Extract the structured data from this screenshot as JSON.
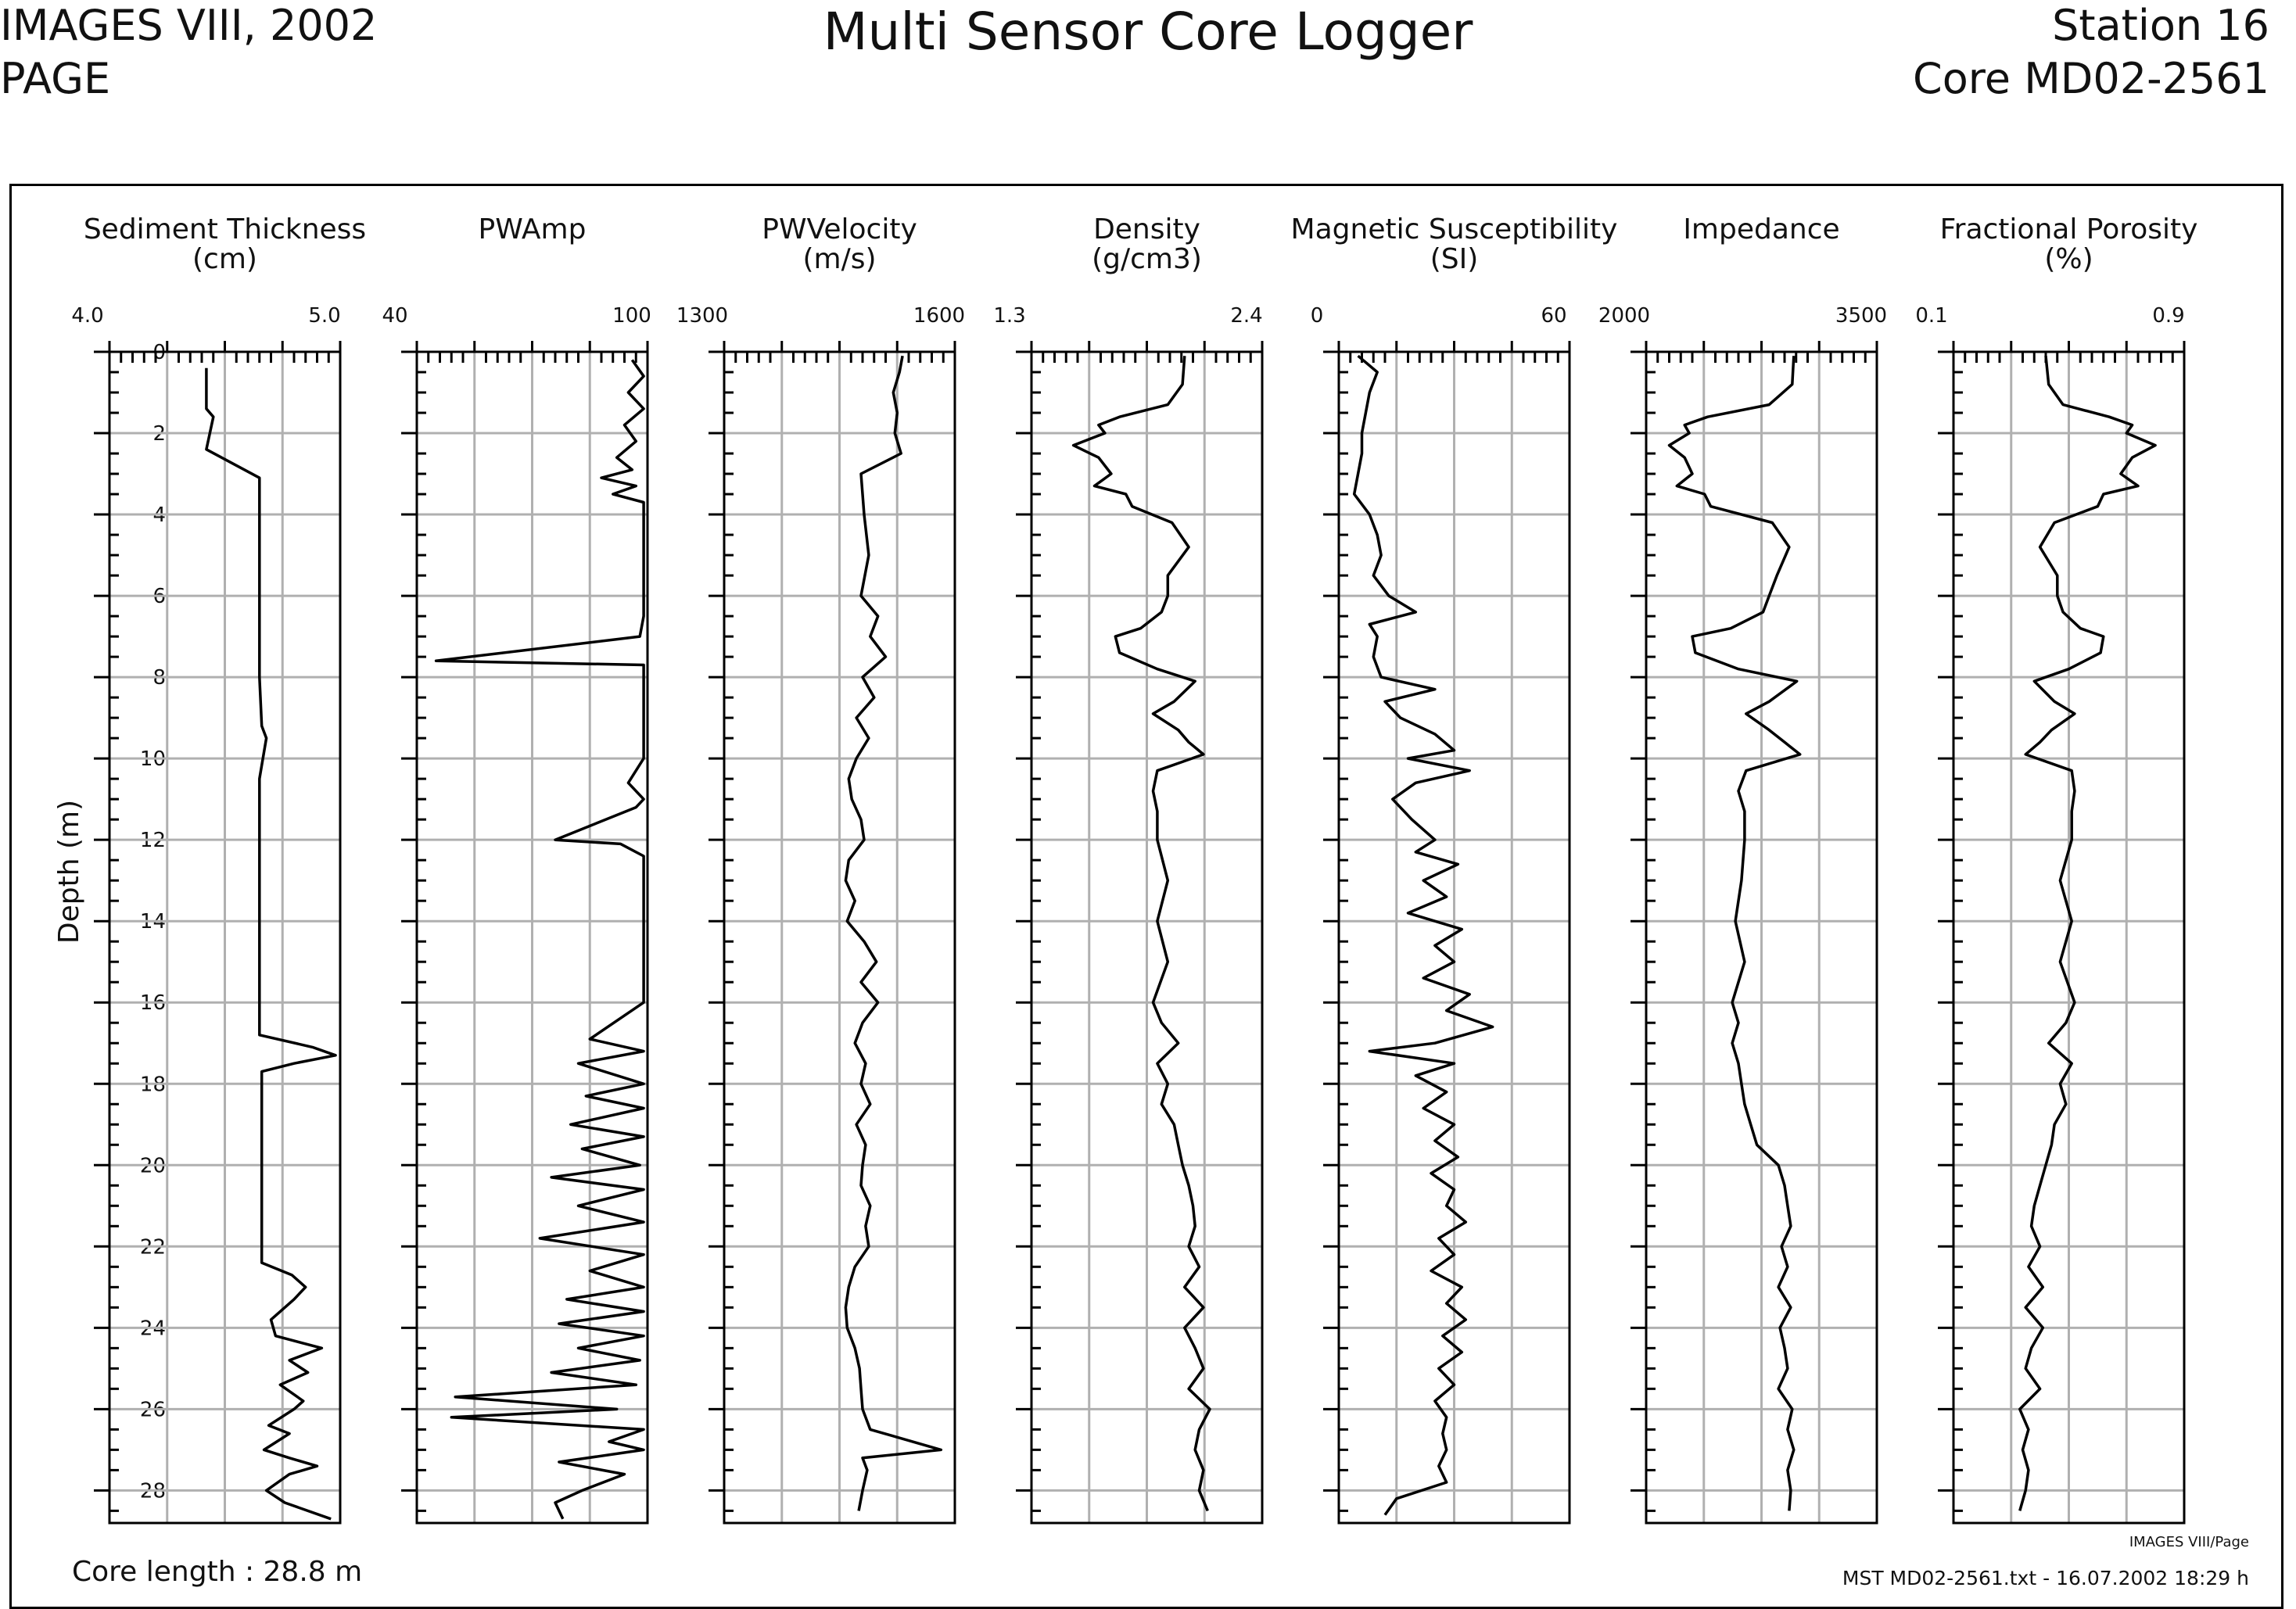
{
  "header": {
    "expedition": "IMAGES VIII, 2002",
    "subtitle": "PAGE",
    "title": "Multi Sensor Core Logger",
    "station": "Station 16",
    "core": "Core MD02-2561"
  },
  "footer": {
    "core_length": "Core length : 28.8 m",
    "tag": "IMAGES VIII/Page",
    "file_info": "MST MD02-2561.txt - 16.07.2002 18:29 h"
  },
  "chart_data": {
    "type": "line",
    "ylabel": "Depth (m)",
    "ylim": [
      0,
      28.8
    ],
    "yticks": [
      0,
      2,
      4,
      6,
      8,
      10,
      12,
      14,
      16,
      18,
      20,
      22,
      24,
      26,
      28
    ],
    "yticklabels": [
      "0",
      "2",
      "4",
      "6",
      "8",
      "10",
      "12",
      "14",
      "16",
      "18",
      "20",
      "22",
      "24",
      "26",
      "28"
    ],
    "grid": true,
    "color": "#000000",
    "panels": [
      {
        "title": "Sediment Thickness",
        "unit": "(cm)",
        "xmin_label": "4.0",
        "xmax_label": "5.0",
        "xlim": [
          4.0,
          5.0
        ],
        "depth": [
          0.4,
          1.4,
          1.6,
          2.4,
          3.1,
          4.2,
          6.0,
          8.0,
          9.2,
          9.5,
          10.5,
          12.5,
          14.0,
          16.0,
          16.8,
          17.1,
          17.3,
          17.5,
          17.7,
          18.2,
          20.0,
          22.4,
          22.7,
          23.0,
          23.3,
          23.8,
          24.2,
          24.5,
          24.8,
          25.1,
          25.4,
          25.8,
          26.0,
          26.4,
          26.6,
          27.0,
          27.2,
          27.4,
          27.6,
          28.0,
          28.3,
          28.7
        ],
        "values": [
          4.42,
          4.42,
          4.45,
          4.42,
          4.65,
          4.65,
          4.65,
          4.65,
          4.66,
          4.68,
          4.65,
          4.65,
          4.65,
          4.65,
          4.65,
          4.88,
          4.98,
          4.8,
          4.66,
          4.66,
          4.66,
          4.66,
          4.79,
          4.85,
          4.8,
          4.7,
          4.72,
          4.92,
          4.78,
          4.86,
          4.74,
          4.84,
          4.8,
          4.69,
          4.78,
          4.67,
          4.78,
          4.9,
          4.78,
          4.68,
          4.76,
          4.96
        ]
      },
      {
        "title": "PWAmp",
        "unit": "",
        "xmin_label": "40",
        "xmax_label": "100",
        "xlim": [
          40,
          100
        ],
        "depth": [
          0.2,
          0.6,
          1.0,
          1.4,
          1.8,
          2.2,
          2.6,
          2.9,
          3.1,
          3.3,
          3.5,
          3.7,
          4.0,
          4.5,
          5.5,
          6.5,
          7.0,
          7.6,
          7.7,
          8.0,
          9.0,
          10.0,
          10.6,
          11.0,
          11.2,
          12.0,
          12.1,
          12.4,
          13.0,
          13.4,
          14.0,
          15.0,
          16.0,
          16.9,
          17.2,
          17.5,
          18.0,
          18.3,
          18.6,
          19.0,
          19.3,
          19.6,
          20.0,
          20.3,
          20.6,
          21.0,
          21.4,
          21.8,
          22.2,
          22.6,
          23.0,
          23.3,
          23.6,
          23.9,
          24.2,
          24.5,
          24.8,
          25.1,
          25.4,
          25.7,
          26.0,
          26.2,
          26.5,
          26.8,
          27.0,
          27.3,
          27.6,
          28.0,
          28.3,
          28.7
        ],
        "values": [
          96,
          99,
          95,
          99,
          94,
          97,
          92,
          96,
          88,
          97,
          91,
          99,
          99,
          99,
          99,
          99,
          98,
          45,
          99,
          99,
          99,
          99,
          95,
          99,
          97,
          76,
          93,
          99,
          99,
          99,
          99,
          99,
          99,
          85,
          99,
          82,
          99,
          84,
          99,
          80,
          99,
          83,
          98,
          75,
          99,
          82,
          99,
          72,
          99,
          85,
          99,
          79,
          99,
          77,
          99,
          82,
          98,
          75,
          97,
          50,
          92,
          49,
          99,
          90,
          99,
          77,
          94,
          83,
          76,
          78
        ]
      },
      {
        "title": "PWVelocity",
        "unit": "(m/s)",
        "xmin_label": "1300",
        "xmax_label": "1600",
        "xlim": [
          1300,
          1600
        ],
        "depth": [
          0.1,
          0.5,
          1.0,
          1.5,
          2.0,
          2.5,
          3.0,
          4.0,
          5.0,
          6.0,
          6.5,
          7.0,
          7.5,
          8.0,
          8.5,
          9.0,
          9.5,
          10.0,
          10.5,
          11.0,
          11.5,
          12.0,
          12.5,
          13.0,
          13.5,
          14.0,
          14.5,
          15.0,
          15.5,
          16.0,
          16.5,
          17.0,
          17.5,
          18.0,
          18.5,
          19.0,
          19.5,
          20.0,
          20.5,
          21.0,
          21.5,
          22.0,
          22.5,
          23.0,
          23.5,
          24.0,
          24.5,
          25.0,
          25.5,
          26.0,
          26.5,
          27.0,
          27.2,
          27.5,
          28.0,
          28.5
        ],
        "values": [
          1532,
          1528,
          1520,
          1525,
          1522,
          1530,
          1478,
          1482,
          1488,
          1478,
          1500,
          1490,
          1510,
          1480,
          1495,
          1472,
          1488,
          1472,
          1462,
          1466,
          1478,
          1482,
          1462,
          1458,
          1470,
          1460,
          1482,
          1498,
          1478,
          1500,
          1480,
          1470,
          1484,
          1478,
          1490,
          1472,
          1484,
          1480,
          1478,
          1490,
          1484,
          1488,
          1470,
          1462,
          1458,
          1460,
          1470,
          1476,
          1478,
          1480,
          1490,
          1582,
          1480,
          1486,
          1480,
          1475
        ]
      },
      {
        "title": "Density",
        "unit": "(g/cm3)",
        "xmin_label": "1.3",
        "xmax_label": "2.4",
        "xlim": [
          1.3,
          2.4
        ],
        "depth": [
          0.1,
          0.8,
          1.3,
          1.6,
          1.8,
          2.0,
          2.3,
          2.6,
          3.0,
          3.3,
          3.5,
          3.8,
          4.2,
          4.8,
          5.5,
          6.0,
          6.4,
          6.8,
          7.0,
          7.4,
          7.8,
          8.1,
          8.6,
          8.9,
          9.3,
          9.6,
          9.9,
          10.3,
          10.8,
          11.3,
          12.0,
          13.0,
          14.0,
          15.0,
          16.0,
          16.5,
          17.0,
          17.5,
          18.0,
          18.5,
          19.0,
          19.5,
          20.0,
          20.5,
          21.0,
          21.5,
          22.0,
          22.5,
          23.0,
          23.5,
          24.0,
          24.5,
          25.0,
          25.5,
          26.0,
          26.5,
          27.0,
          27.5,
          28.0,
          28.5
        ],
        "values": [
          2.03,
          2.02,
          1.95,
          1.72,
          1.62,
          1.65,
          1.5,
          1.62,
          1.68,
          1.6,
          1.75,
          1.78,
          1.97,
          2.05,
          1.95,
          1.95,
          1.92,
          1.82,
          1.7,
          1.72,
          1.9,
          2.08,
          1.98,
          1.88,
          2.0,
          2.05,
          2.12,
          1.9,
          1.88,
          1.9,
          1.9,
          1.95,
          1.9,
          1.95,
          1.88,
          1.92,
          2.0,
          1.9,
          1.95,
          1.92,
          1.98,
          2.0,
          2.02,
          2.05,
          2.07,
          2.08,
          2.05,
          2.1,
          2.03,
          2.12,
          2.03,
          2.08,
          2.12,
          2.05,
          2.15,
          2.1,
          2.08,
          2.12,
          2.1,
          2.14
        ]
      },
      {
        "title": "Magnetic Susceptibility",
        "unit": "(SI)",
        "xmin_label": "0",
        "xmax_label": "60",
        "xlim": [
          0,
          60
        ],
        "depth": [
          0.1,
          0.5,
          1.0,
          1.5,
          2.0,
          2.5,
          3.0,
          3.5,
          4.0,
          4.5,
          5.0,
          5.5,
          6.0,
          6.4,
          6.7,
          7.0,
          7.5,
          8.0,
          8.3,
          8.6,
          9.0,
          9.4,
          9.8,
          10.0,
          10.3,
          10.6,
          11.0,
          11.5,
          12.0,
          12.3,
          12.6,
          13.0,
          13.4,
          13.8,
          14.2,
          14.6,
          15.0,
          15.4,
          15.8,
          16.2,
          16.6,
          17.0,
          17.2,
          17.5,
          17.8,
          18.2,
          18.6,
          19.0,
          19.4,
          19.8,
          20.2,
          20.6,
          21.0,
          21.4,
          21.8,
          22.2,
          22.6,
          23.0,
          23.4,
          23.8,
          24.2,
          24.6,
          25.0,
          25.4,
          25.8,
          26.2,
          26.6,
          27.0,
          27.4,
          27.8,
          28.2,
          28.6
        ],
        "values": [
          5,
          10,
          8,
          7,
          6,
          6,
          5,
          4,
          8,
          10,
          11,
          9,
          13,
          20,
          8,
          10,
          9,
          11,
          25,
          12,
          16,
          25,
          30,
          18,
          34,
          20,
          14,
          19,
          25,
          20,
          31,
          22,
          28,
          18,
          32,
          25,
          30,
          22,
          34,
          28,
          40,
          25,
          8,
          30,
          20,
          28,
          22,
          30,
          25,
          31,
          24,
          30,
          28,
          33,
          26,
          30,
          24,
          32,
          28,
          33,
          27,
          32,
          26,
          30,
          25,
          28,
          27,
          28,
          26,
          28,
          15,
          12
        ]
      },
      {
        "title": "Impedance",
        "unit": "",
        "xmin_label": "2000",
        "xmax_label": "3500",
        "xlim": [
          2000,
          3500
        ],
        "depth": [
          0.1,
          0.8,
          1.3,
          1.6,
          1.8,
          2.0,
          2.3,
          2.6,
          3.0,
          3.3,
          3.5,
          3.8,
          4.2,
          4.8,
          5.5,
          6.0,
          6.4,
          6.8,
          7.0,
          7.4,
          7.8,
          8.1,
          8.6,
          8.9,
          9.3,
          9.6,
          9.9,
          10.3,
          10.8,
          11.3,
          12.0,
          13.0,
          14.0,
          15.0,
          16.0,
          16.5,
          17.0,
          17.5,
          18.0,
          18.5,
          19.0,
          19.5,
          20.0,
          20.5,
          21.0,
          21.5,
          22.0,
          22.5,
          23.0,
          23.5,
          24.0,
          24.5,
          25.0,
          25.5,
          26.0,
          26.5,
          27.0,
          27.5,
          28.0,
          28.5
        ],
        "values": [
          2960,
          2950,
          2800,
          2400,
          2250,
          2280,
          2150,
          2250,
          2300,
          2200,
          2380,
          2420,
          2820,
          2930,
          2850,
          2800,
          2760,
          2550,
          2300,
          2320,
          2600,
          2980,
          2800,
          2650,
          2800,
          2900,
          3000,
          2650,
          2600,
          2640,
          2640,
          2620,
          2580,
          2640,
          2560,
          2600,
          2560,
          2600,
          2620,
          2640,
          2680,
          2720,
          2860,
          2900,
          2920,
          2940,
          2880,
          2920,
          2860,
          2940,
          2870,
          2900,
          2920,
          2860,
          2950,
          2920,
          2960,
          2920,
          2940,
          2930
        ]
      },
      {
        "title": "Fractional Porosity",
        "unit": "(%)",
        "xmin_label": "0.1",
        "xmax_label": "0.9",
        "xlim": [
          0.1,
          0.9
        ],
        "depth": [
          0.1,
          0.8,
          1.3,
          1.6,
          1.8,
          2.0,
          2.3,
          2.6,
          3.0,
          3.3,
          3.5,
          3.8,
          4.2,
          4.8,
          5.5,
          6.0,
          6.4,
          6.8,
          7.0,
          7.4,
          7.8,
          8.1,
          8.6,
          8.9,
          9.3,
          9.6,
          9.9,
          10.3,
          10.8,
          11.3,
          12.0,
          13.0,
          14.0,
          15.0,
          16.0,
          16.5,
          17.0,
          17.5,
          18.0,
          18.5,
          19.0,
          19.5,
          20.0,
          20.5,
          21.0,
          21.5,
          22.0,
          22.5,
          23.0,
          23.5,
          24.0,
          24.5,
          25.0,
          25.5,
          26.0,
          26.5,
          27.0,
          27.5,
          28.0,
          28.5
        ],
        "values": [
          0.42,
          0.43,
          0.48,
          0.64,
          0.72,
          0.7,
          0.8,
          0.72,
          0.68,
          0.74,
          0.62,
          0.6,
          0.45,
          0.4,
          0.46,
          0.46,
          0.48,
          0.54,
          0.62,
          0.61,
          0.5,
          0.38,
          0.45,
          0.52,
          0.44,
          0.4,
          0.35,
          0.51,
          0.52,
          0.51,
          0.51,
          0.47,
          0.51,
          0.47,
          0.52,
          0.49,
          0.43,
          0.51,
          0.47,
          0.49,
          0.45,
          0.44,
          0.42,
          0.4,
          0.38,
          0.37,
          0.4,
          0.36,
          0.41,
          0.35,
          0.41,
          0.37,
          0.35,
          0.4,
          0.33,
          0.36,
          0.34,
          0.36,
          0.35,
          0.33
        ]
      }
    ]
  }
}
